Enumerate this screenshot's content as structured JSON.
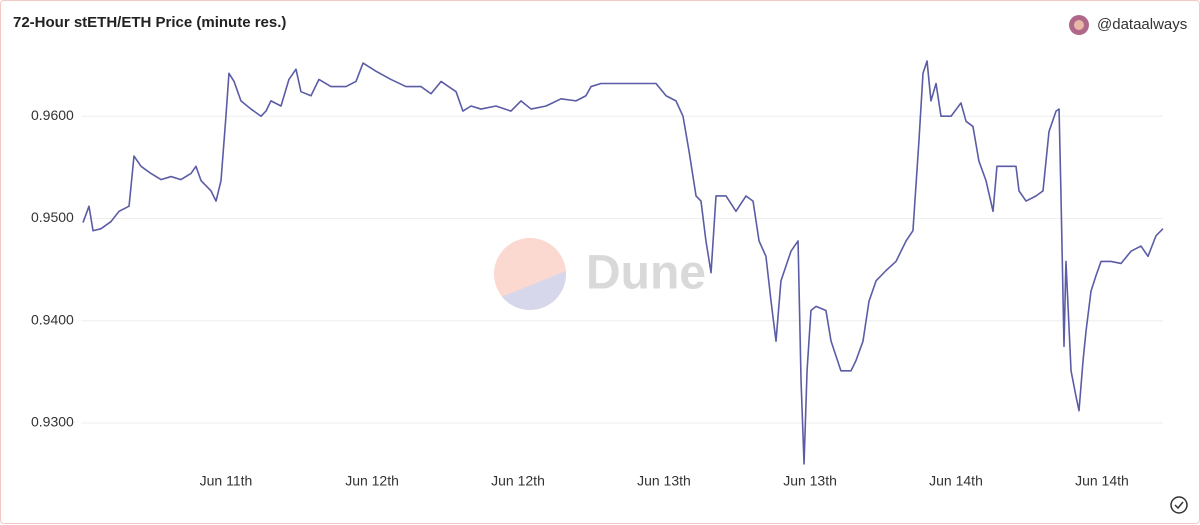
{
  "chart_data": {
    "type": "line",
    "title": "72-Hour stETH/ETH Price (minute res.)",
    "author": "@dataalways",
    "watermark": "Dune",
    "color": "#5b5ca6",
    "grid": true,
    "xlim": [
      0,
      72
    ],
    "xticks": [
      {
        "value": 9.53,
        "label": "Jun 11th"
      },
      {
        "value": 19.27,
        "label": "Jun 12th"
      },
      {
        "value": 29.0,
        "label": "Jun 12th"
      },
      {
        "value": 38.73,
        "label": "Jun 13th"
      },
      {
        "value": 48.47,
        "label": "Jun 13th"
      },
      {
        "value": 58.2,
        "label": "Jun 14th"
      },
      {
        "value": 67.93,
        "label": "Jun 14th"
      }
    ],
    "ylim": [
      0.9255,
      0.9654
    ],
    "yticks": [
      {
        "value": 0.93,
        "label": "0.9300"
      },
      {
        "value": 0.94,
        "label": "0.9400"
      },
      {
        "value": 0.95,
        "label": "0.9500"
      },
      {
        "value": 0.96,
        "label": "0.9600"
      }
    ],
    "x": [
      0,
      0.4,
      0.67,
      1.2,
      1.87,
      2.4,
      3.07,
      3.4,
      3.87,
      4.53,
      5.2,
      5.87,
      6.53,
      7.2,
      7.53,
      7.87,
      8.53,
      8.87,
      9.2,
      9.53,
      9.73,
      10.07,
      10.53,
      11.2,
      11.87,
      12.2,
      12.53,
      13.2,
      13.73,
      14.2,
      14.53,
      15.2,
      15.73,
      16.53,
      17.53,
      18.2,
      18.67,
      19.53,
      20.53,
      21.53,
      22.53,
      23.2,
      23.87,
      24.87,
      25.33,
      25.87,
      26.53,
      27.53,
      28.53,
      29.2,
      29.87,
      30.87,
      31.87,
      32.87,
      33.53,
      33.87,
      34.53,
      35.87,
      37.2,
      38.2,
      38.87,
      39.53,
      40.0,
      40.4,
      40.87,
      41.2,
      41.53,
      41.87,
      42.2,
      42.87,
      43.53,
      44.2,
      44.67,
      45.07,
      45.53,
      45.87,
      46.2,
      46.53,
      47.2,
      47.67,
      47.87,
      48.07,
      48.27,
      48.53,
      48.87,
      49.53,
      49.87,
      50.53,
      51.2,
      51.53,
      52.0,
      52.4,
      52.87,
      53.53,
      54.2,
      54.87,
      55.33,
      55.73,
      56.0,
      56.27,
      56.53,
      56.87,
      57.2,
      57.87,
      58.53,
      58.87,
      59.33,
      59.73,
      60.2,
      60.67,
      60.93,
      61.53,
      62.2,
      62.4,
      62.87,
      63.53,
      64.0,
      64.4,
      64.87,
      65.07,
      65.2,
      65.4,
      65.53,
      65.87,
      66.2,
      66.4,
      66.67,
      66.87,
      67.2,
      67.53,
      67.87,
      68.53,
      69.2,
      69.87,
      70.53,
      71.0,
      71.53,
      72.0
    ],
    "values": [
      0.9496,
      0.9512,
      0.9488,
      0.949,
      0.9497,
      0.9507,
      0.9512,
      0.9561,
      0.9551,
      0.9544,
      0.9538,
      0.9541,
      0.9538,
      0.9544,
      0.9551,
      0.9537,
      0.9527,
      0.9517,
      0.9537,
      0.96,
      0.9642,
      0.9634,
      0.9615,
      0.9607,
      0.96,
      0.9605,
      0.9615,
      0.961,
      0.9636,
      0.9646,
      0.9624,
      0.962,
      0.9636,
      0.9629,
      0.9629,
      0.9634,
      0.9652,
      0.9644,
      0.9636,
      0.9629,
      0.9629,
      0.9622,
      0.9634,
      0.9624,
      0.9605,
      0.961,
      0.9607,
      0.961,
      0.9605,
      0.9615,
      0.9607,
      0.961,
      0.9617,
      0.9615,
      0.962,
      0.9629,
      0.9632,
      0.9632,
      0.9632,
      0.9632,
      0.962,
      0.9615,
      0.96,
      0.9566,
      0.9522,
      0.9517,
      0.9478,
      0.9447,
      0.9522,
      0.9522,
      0.9507,
      0.9522,
      0.9517,
      0.9478,
      0.9463,
      0.9419,
      0.938,
      0.9439,
      0.9468,
      0.9478,
      0.9341,
      0.926,
      0.9351,
      0.941,
      0.9414,
      0.941,
      0.938,
      0.9351,
      0.9351,
      0.9361,
      0.938,
      0.9419,
      0.9439,
      0.9449,
      0.9458,
      0.9478,
      0.9488,
      0.9576,
      0.9642,
      0.9654,
      0.9615,
      0.9632,
      0.96,
      0.96,
      0.9613,
      0.9595,
      0.959,
      0.9556,
      0.9537,
      0.9507,
      0.9551,
      0.9551,
      0.9551,
      0.9527,
      0.9517,
      0.9522,
      0.9527,
      0.9585,
      0.9605,
      0.9607,
      0.9522,
      0.9375,
      0.9458,
      0.9351,
      0.9326,
      0.9312,
      0.9361,
      0.939,
      0.9429,
      0.9444,
      0.9458,
      0.9458,
      0.9456,
      0.9468,
      0.9473,
      0.9463,
      0.9483,
      0.949
    ]
  }
}
